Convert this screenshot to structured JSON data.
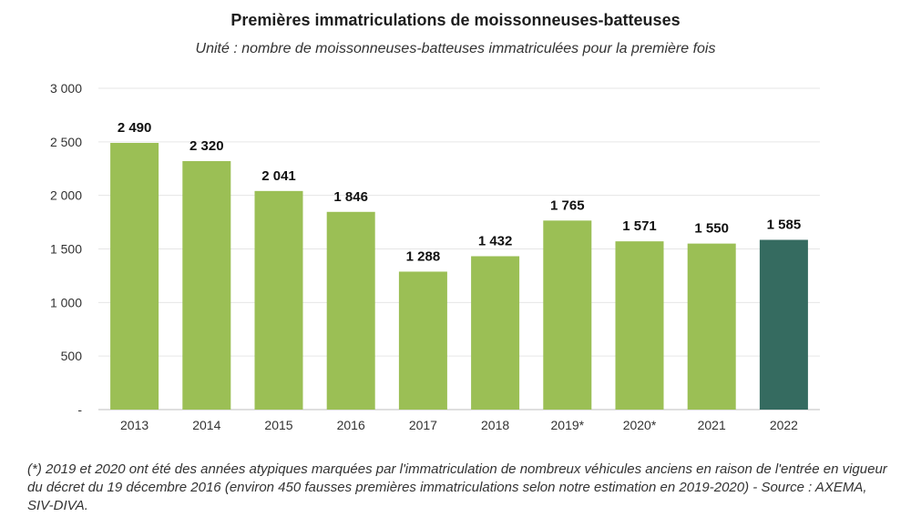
{
  "chart_data": {
    "type": "bar",
    "title": "Premières immatriculations de moissonneuses-batteuses",
    "subtitle": "Unité : nombre de moissonneuses-batteuses immatriculées pour la première fois",
    "categories": [
      "2013",
      "2014",
      "2015",
      "2016",
      "2017",
      "2018",
      "2019*",
      "2020*",
      "2021",
      "2022"
    ],
    "values": [
      2490,
      2320,
      2041,
      1846,
      1288,
      1432,
      1765,
      1571,
      1550,
      1585
    ],
    "value_labels": [
      "2 490",
      "2 320",
      "2 041",
      "1 846",
      "1 288",
      "1 432",
      "1 765",
      "1 571",
      "1 550",
      "1 585"
    ],
    "ylim": [
      0,
      3000
    ],
    "yticks": [
      0,
      500,
      1000,
      1500,
      2000,
      2500,
      3000
    ],
    "ytick_labels": [
      "-",
      "500",
      "1 000",
      "1 500",
      "2 000",
      "2 500",
      "3 000"
    ],
    "xlabel": "",
    "ylabel": "",
    "grid": true,
    "colors": {
      "bar": "#9bbf55",
      "highlight_bar": "#356b60",
      "grid": "#e6e6e6",
      "axis": "#bfbfbf"
    },
    "highlight_category": "2022"
  },
  "footnote": "(*) 2019 et 2020 ont été des années atypiques marquées par l'immatriculation de nombreux véhicules anciens en raison de l'entrée en vigueur du décret du 19 décembre 2016 (environ 450 fausses premières immatriculations selon notre estimation en 2019-2020) - Source : AXEMA, SIV-DIVA."
}
